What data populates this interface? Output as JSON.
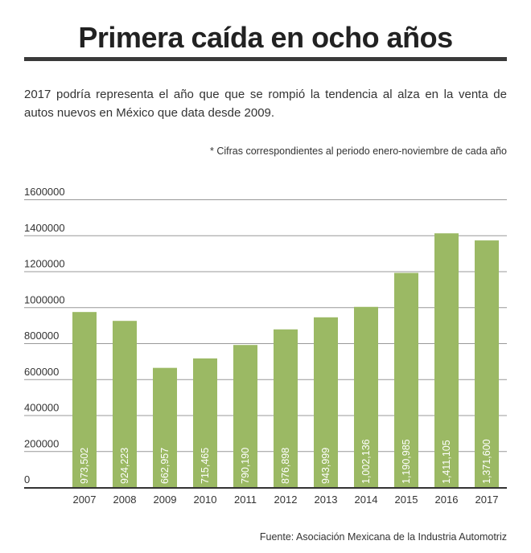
{
  "header": {
    "title": "Primera caída en ocho años",
    "subtitle": "2017 podría representa el año que que se rompió la tendencia al alza en la venta de autos nuevos en México que data desde 2009.",
    "note": "* Cifras correspondientes al periodo enero-noviembre de cada año"
  },
  "footer": {
    "source": "Fuente: Asociación Mexicana de la Industria Automotriz"
  },
  "chart_data": {
    "type": "bar",
    "title": "Primera caída en ocho años",
    "categories": [
      "2007",
      "2008",
      "2009",
      "2010",
      "2011",
      "2012",
      "2013",
      "2014",
      "2015",
      "2016",
      "2017"
    ],
    "values": [
      973502,
      924223,
      662957,
      715465,
      790190,
      876898,
      943999,
      1002136,
      1190985,
      1411105,
      1371600
    ],
    "data_labels": [
      "973,502",
      "924,223",
      "662,957",
      "715,465",
      "790,190",
      "876,898",
      "943,999",
      "1,002,136",
      "1,190,985",
      "1,411,105",
      "1,371,600"
    ],
    "yticks": [
      "0",
      "200000",
      "400000",
      "600000",
      "800000",
      "1000000",
      "1200000",
      "1400000",
      "1600000"
    ],
    "ytick_values": [
      0,
      200000,
      400000,
      600000,
      800000,
      1000000,
      1200000,
      1400000,
      1600000
    ],
    "ylim": [
      0,
      1600000
    ],
    "xlabel": "",
    "ylabel": "",
    "grid": true,
    "legend": "none",
    "bar_color": "#9bb964",
    "grid_color": "#999999",
    "axis_color": "#333333"
  }
}
